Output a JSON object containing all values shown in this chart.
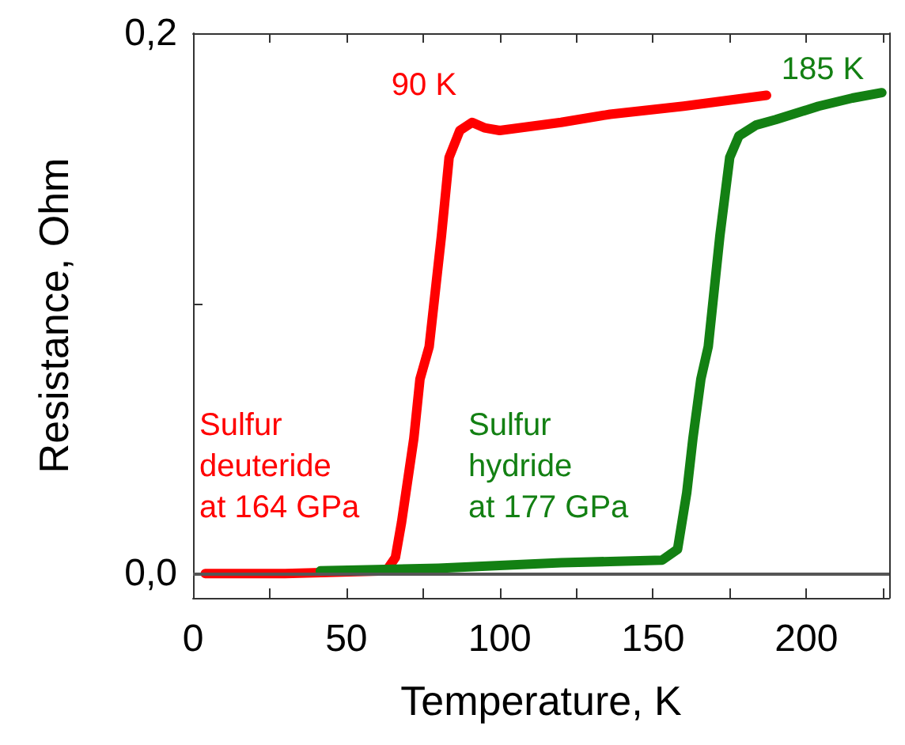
{
  "chart_data": {
    "type": "line",
    "xlabel": "Temperature, K",
    "ylabel": "Resistance, Ohm",
    "xlim": [
      0,
      227
    ],
    "ylim": [
      -0.009,
      0.2
    ],
    "xticks": [
      0,
      {
        "value": 25,
        "label": null
      },
      50,
      {
        "value": 75,
        "label": null
      },
      100,
      {
        "value": 125,
        "label": null
      },
      150,
      {
        "value": 175,
        "label": null
      },
      200,
      {
        "value": 225,
        "label": null
      }
    ],
    "yticks": [
      {
        "value": 0,
        "label": "0,0"
      },
      {
        "value": 0.1,
        "label": null
      },
      {
        "value": 0.2,
        "label": "0,2"
      }
    ],
    "grid": false,
    "legend": false,
    "marker": "none",
    "line_style": "solid",
    "ref_lines": [
      {
        "axis": "y",
        "value": 0,
        "color": "#555555"
      }
    ],
    "annotations": [
      "90 K",
      "185 K"
    ],
    "series": [
      {
        "name": "Sulfur\ndeuteride\nat 164 GPa",
        "color": "#ff0000",
        "x": [
          4,
          30,
          63,
          66,
          68,
          72,
          74,
          77,
          81,
          83.5,
          87,
          91,
          95,
          100,
          120,
          136,
          160,
          187
        ],
        "values": [
          0,
          0,
          0.001,
          0.006,
          0.019,
          0.05,
          0.072,
          0.084,
          0.125,
          0.154,
          0.164,
          0.167,
          0.165,
          0.164,
          0.167,
          0.17,
          0.173,
          0.177
        ]
      },
      {
        "name": "Sulfur\nhydride\nat 177 GPa",
        "color": "#138013",
        "x": [
          41.5,
          80,
          120,
          153,
          158,
          161,
          163,
          165.6,
          168,
          171.8,
          175,
          178,
          183.6,
          190,
          204,
          215,
          224.6
        ],
        "values": [
          0.001,
          0.002,
          0.004,
          0.005,
          0.009,
          0.03,
          0.05,
          0.072,
          0.084,
          0.125,
          0.154,
          0.162,
          0.166,
          0.168,
          0.173,
          0.176,
          0.178
        ]
      }
    ]
  }
}
